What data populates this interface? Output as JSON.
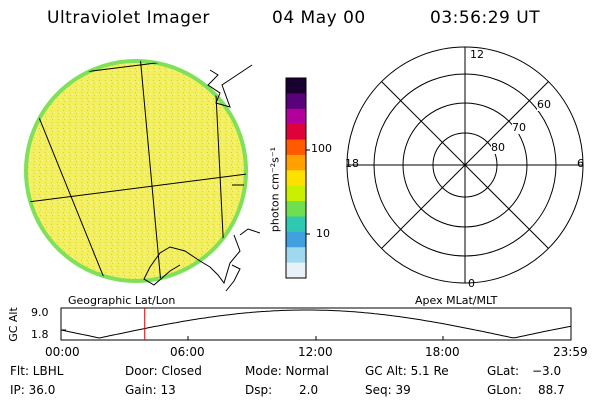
{
  "header": {
    "title": "Ultraviolet Imager",
    "date": "04 May 00",
    "time": "03:56:29 UT"
  },
  "globe_panel": {
    "caption": "Geographic Lat/Lon",
    "fill_color": "#f2f25a",
    "edge_color": "#7fe05a"
  },
  "colorbar": {
    "unit_label": "photon cm⁻²s⁻¹",
    "ticks": [
      "100",
      "10"
    ],
    "colors": [
      "#1a0030",
      "#5a0078",
      "#b4009a",
      "#e0003a",
      "#ff5a00",
      "#ffa000",
      "#ffe000",
      "#c8f000",
      "#6ee050",
      "#30c8b0",
      "#40a0e0",
      "#a0d8f0",
      "#e8f0f8"
    ]
  },
  "polar_panel": {
    "caption": "Apex MLat/MLT",
    "mlt_labels": {
      "top": "12",
      "right": "6",
      "bottom": "0",
      "left": "18"
    },
    "lat_labels": [
      "60",
      "70",
      "80"
    ]
  },
  "altitude_plot": {
    "ylabel": "GC Alt",
    "yticks": [
      "9.0",
      "1.8"
    ],
    "xticks": [
      "00:00",
      "06:00",
      "12:00",
      "18:00",
      "23:59"
    ],
    "marker_color": "#e00000",
    "marker_time_hours": 3.94
  },
  "footer": {
    "row1": {
      "flt": "Flt: LBHL",
      "door": "Door: Closed",
      "mode": "Mode: Normal",
      "gcalt": "GC Alt: 5.1 Re",
      "glat_label": "GLat:",
      "glat_value": "−3.0"
    },
    "row2": {
      "ip": "IP: 36.0",
      "gain": "Gain: 13",
      "dsp_label": "Dsp:",
      "dsp_value": "2.0",
      "seq": "Seq: 39",
      "glon_label": "GLon:",
      "glon_value": "88.7"
    }
  }
}
